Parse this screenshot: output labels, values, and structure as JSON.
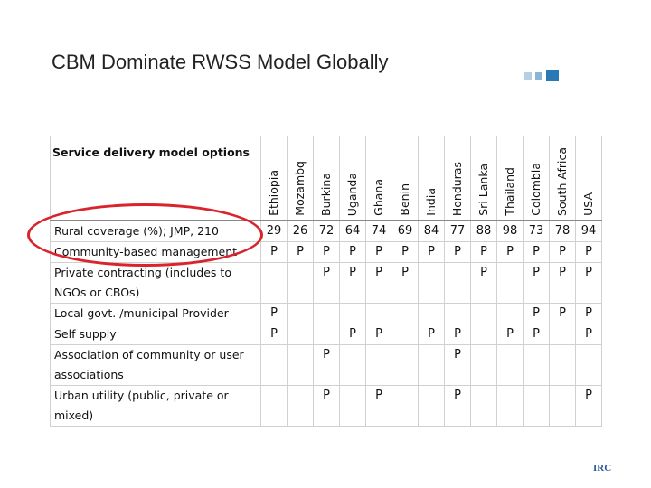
{
  "header": {
    "title": "CBM Dominate RWSS Model Globally"
  },
  "table": {
    "header": [
      "Service delivery model options",
      "Ethiopia",
      "Mozambq",
      "Burkina",
      "Uganda",
      "Ghana",
      "Benin",
      "India",
      "Honduras",
      "Sri Lanka",
      "Thailand",
      "Colombia",
      "South Africa",
      "USA"
    ],
    "rows": [
      [
        "Rural coverage (%); JMP, 210",
        29,
        26,
        72,
        64,
        74,
        69,
        84,
        77,
        88,
        98,
        73,
        78,
        94
      ],
      [
        "Community-based management",
        "P",
        "P",
        "P",
        "P",
        "P",
        "P",
        "P",
        "P",
        "P",
        "P",
        "P",
        "P",
        "P"
      ],
      [
        "Private contracting (includes to NGOs or CBOs)",
        null,
        null,
        "P",
        "P",
        "P",
        "P",
        null,
        null,
        "P",
        null,
        "P",
        "P",
        "P"
      ],
      [
        "Local govt. /municipal Provider",
        "P",
        null,
        null,
        null,
        null,
        null,
        null,
        null,
        null,
        null,
        "P",
        "P",
        "P"
      ],
      [
        "Self supply",
        "P",
        null,
        null,
        "P",
        "P",
        null,
        "P",
        "P",
        null,
        "P",
        "P",
        null,
        "P"
      ],
      [
        "Association of community or user associations",
        null,
        null,
        "P",
        null,
        null,
        null,
        null,
        "P",
        null,
        null,
        null,
        null,
        null
      ],
      [
        "Urban utility (public, private or mixed)",
        null,
        null,
        "P",
        null,
        "P",
        null,
        null,
        "P",
        null,
        null,
        null,
        null,
        "P"
      ]
    ]
  },
  "logo": "IRC"
}
